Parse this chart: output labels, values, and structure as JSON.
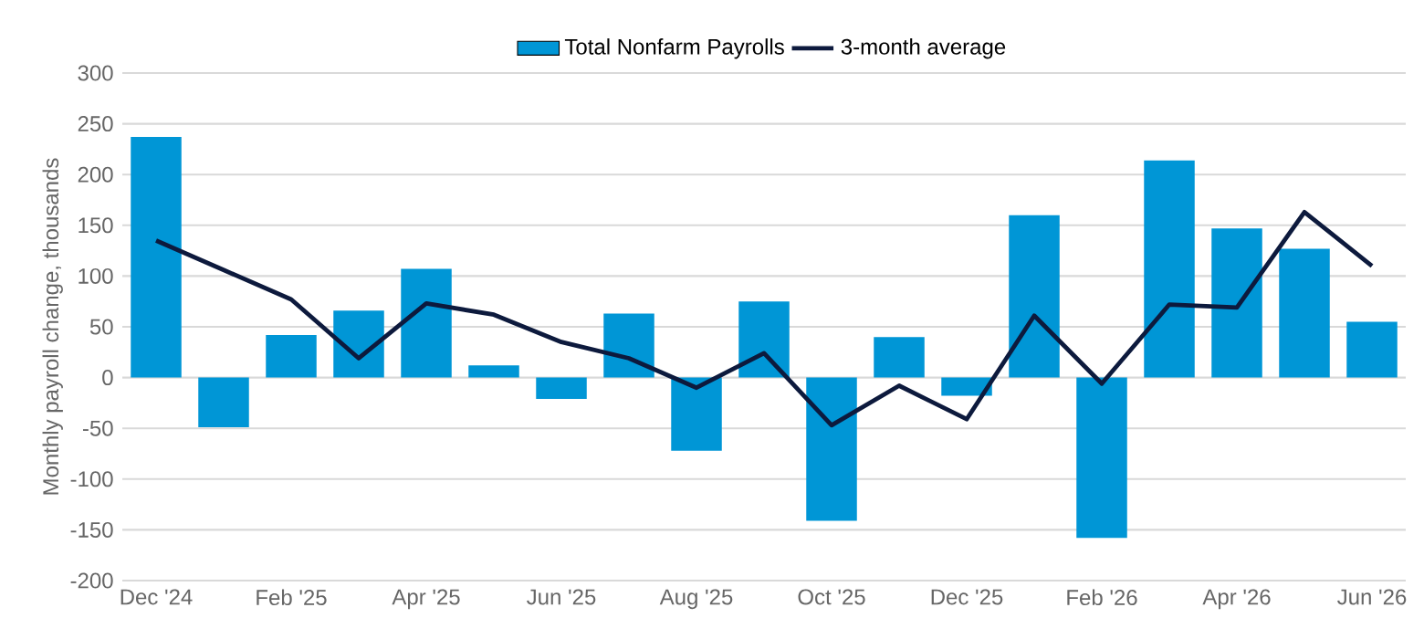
{
  "chart_data": {
    "type": "bar",
    "ylabel": "Monthly payroll change, thousands",
    "categories": [
      "Dec '24",
      null,
      "Feb '25",
      null,
      "Apr '25",
      null,
      "Jun '25",
      null,
      "Aug '25",
      null,
      "Oct '25",
      null,
      "Dec '25",
      null,
      "Feb '26",
      null,
      "Apr '26",
      null,
      "Jun '26"
    ],
    "series": [
      {
        "name": "Total Nonfarm Payrolls",
        "color": "#0096d6",
        "values": [
          237,
          -49,
          42,
          66,
          107,
          12,
          -21,
          63,
          -72,
          75,
          -141,
          40,
          -18,
          160,
          -158,
          214,
          147,
          127,
          55
        ]
      },
      {
        "name": "3-month average",
        "type": "line",
        "color": "#0d1a3d",
        "values": [
          135,
          106,
          77,
          19,
          73,
          62,
          35,
          19,
          -10,
          24,
          -47,
          -8,
          -41,
          61,
          -6,
          72,
          69,
          163,
          110
        ]
      }
    ],
    "ylim": [
      -200,
      300
    ],
    "yticks": [
      -200,
      -150,
      -100,
      -50,
      0,
      50,
      100,
      150,
      200,
      250,
      300
    ],
    "grid": "y",
    "legend": "top",
    "marker": "none",
    "line_style": "solid"
  }
}
